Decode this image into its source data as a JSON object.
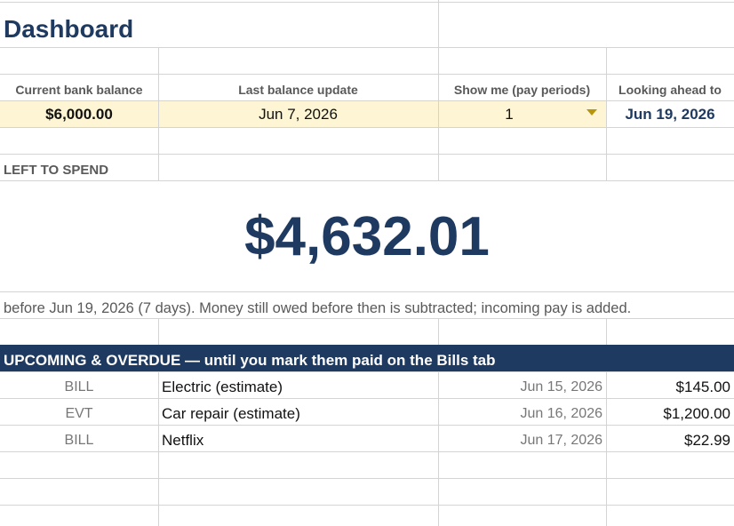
{
  "header": {
    "title": "Dashboard"
  },
  "inputs": [
    {
      "label": "Current bank balance",
      "value": "$6,000.00"
    },
    {
      "label": "Last balance update",
      "value": "Jun 7, 2026"
    },
    {
      "label": "Show me (pay periods)",
      "value": "1"
    },
    {
      "label": "Looking ahead to",
      "value": "Jun 19, 2026"
    }
  ],
  "left_to_spend": {
    "label": "LEFT TO SPEND",
    "amount": "$4,632.01",
    "note": "before Jun 19, 2026  (7 days). Money still owed before then is subtracted; incoming pay is added."
  },
  "upcoming": {
    "title": "UPCOMING & OVERDUE — until you mark them paid on the Bills tab",
    "rows": [
      [
        "BILL",
        "Electric (estimate)",
        "Jun 15, 2026",
        "$145.00"
      ],
      [
        "EVT",
        "Car repair (estimate)",
        "Jun 16, 2026",
        "$1,200.00"
      ],
      [
        "BILL",
        "Netflix",
        "Jun 17, 2026",
        "$22.99"
      ]
    ]
  }
}
